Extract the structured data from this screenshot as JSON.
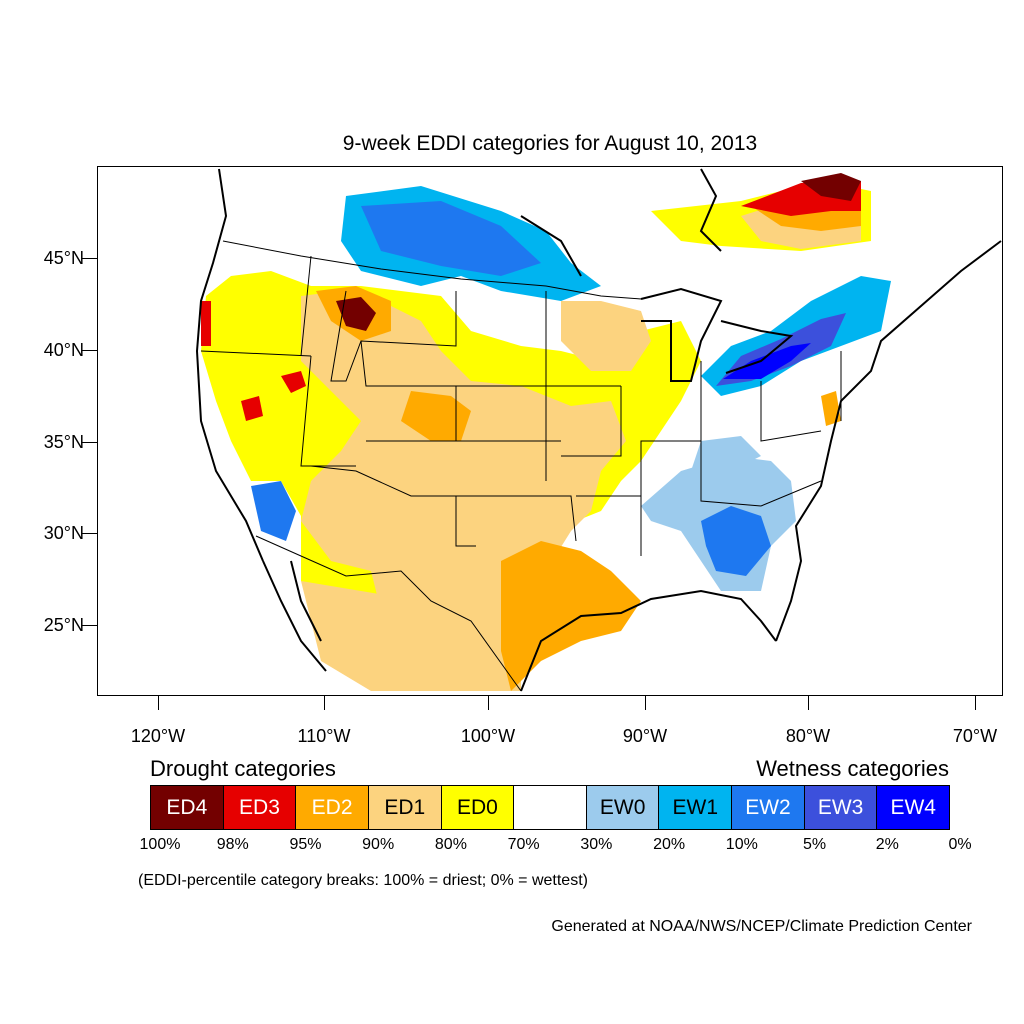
{
  "title": "9-week EDDI categories for August 10, 2013",
  "lat_labels": [
    "45°N",
    "40°N",
    "35°N",
    "30°N",
    "25°N"
  ],
  "lon_labels": [
    "120°W",
    "110°W",
    "100°W",
    "90°W",
    "80°W",
    "70°W"
  ],
  "legend": {
    "drought_heading": "Drought categories",
    "wetness_heading": "Wetness categories",
    "categories": [
      {
        "label": "ED4",
        "color": "#730000",
        "text_color": "#ffffff"
      },
      {
        "label": "ED3",
        "color": "#e60000",
        "text_color": "#ffffff"
      },
      {
        "label": "ED2",
        "color": "#ffaa00",
        "text_color": "#ffffff"
      },
      {
        "label": "ED1",
        "color": "#fcd37f",
        "text_color": "#000000"
      },
      {
        "label": "ED0",
        "color": "#ffff00",
        "text_color": "#000000"
      },
      {
        "label": "",
        "color": "#ffffff",
        "text_color": "#000000"
      },
      {
        "label": "EW0",
        "color": "#9ccbed",
        "text_color": "#000000"
      },
      {
        "label": "EW1",
        "color": "#00b4f0",
        "text_color": "#000000"
      },
      {
        "label": "EW2",
        "color": "#1e78f0",
        "text_color": "#ffffff"
      },
      {
        "label": "EW3",
        "color": "#3c50dc",
        "text_color": "#ffffff"
      },
      {
        "label": "EW4",
        "color": "#0000ff",
        "text_color": "#ffffff"
      }
    ],
    "breaks": [
      "100%",
      "98%",
      "95%",
      "90%",
      "80%",
      "70%",
      "30%",
      "20%",
      "10%",
      "5%",
      "2%",
      "0%"
    ]
  },
  "note": "(EDDI-percentile category breaks: 100% = driest; 0% = wettest)",
  "credit": "Generated at NOAA/NWS/NCEP/Climate Prediction Center"
}
